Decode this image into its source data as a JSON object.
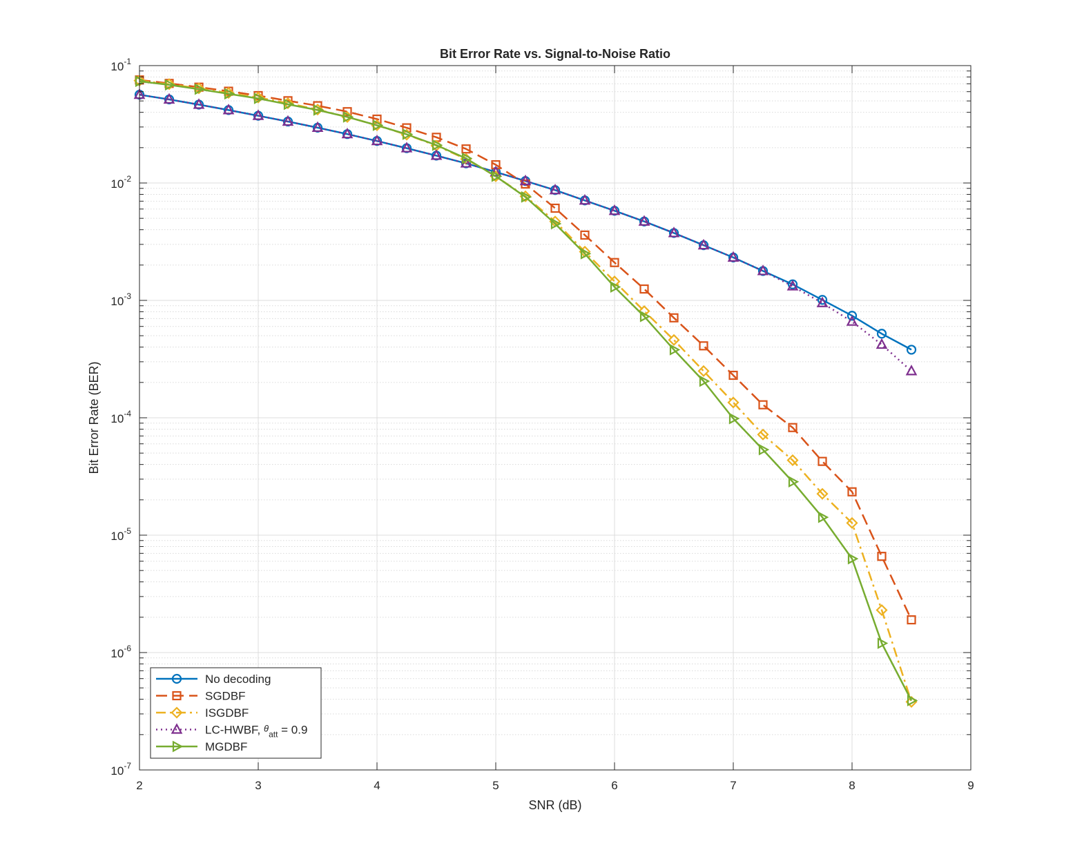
{
  "chart_data": {
    "type": "line",
    "title": "Bit Error Rate vs. Signal-to-Noise Ratio",
    "xlabel": "SNR (dB)",
    "ylabel": "Bit Error Rate (BER)",
    "xlim": [
      2,
      9
    ],
    "ylim": [
      1e-07,
      0.1
    ],
    "yscale": "log",
    "grid": true,
    "minor_grid": true,
    "legend_position": "bottom-left",
    "x_ticks": [
      "2",
      "3",
      "4",
      "5",
      "6",
      "7",
      "8",
      "9"
    ],
    "y_ticks": [
      {
        "base": "10",
        "exp": "-7"
      },
      {
        "base": "10",
        "exp": "-6"
      },
      {
        "base": "10",
        "exp": "-5"
      },
      {
        "base": "10",
        "exp": "-4"
      },
      {
        "base": "10",
        "exp": "-3"
      },
      {
        "base": "10",
        "exp": "-2"
      },
      {
        "base": "10",
        "exp": "-1"
      }
    ],
    "x": [
      2,
      2.25,
      2.5,
      2.75,
      3,
      3.25,
      3.5,
      3.75,
      4,
      4.25,
      4.5,
      4.75,
      5,
      5.25,
      5.5,
      5.75,
      6,
      6.25,
      6.5,
      6.75,
      7,
      7.25,
      7.5,
      7.75,
      8,
      8.25,
      8.5
    ],
    "series": [
      {
        "name": "No decoding",
        "color": "#0072BD",
        "dash": "solid",
        "marker": "circle",
        "values": [
          0.0565,
          0.0515,
          0.0465,
          0.0418,
          0.0374,
          0.0334,
          0.0296,
          0.0261,
          0.0228,
          0.0198,
          0.0171,
          0.0147,
          0.0124,
          0.0104,
          0.0087,
          0.0071,
          0.0058,
          0.0047,
          0.00375,
          0.00295,
          0.00232,
          0.00178,
          0.00137,
          0.00101,
          0.00074,
          0.00052,
          0.00038
        ]
      },
      {
        "name": "SGDBF",
        "color": "#D95319",
        "dash": "dashed",
        "marker": "square",
        "values": [
          0.0755,
          0.0705,
          0.0655,
          0.0605,
          0.0555,
          0.0502,
          0.0455,
          0.0405,
          0.035,
          0.0295,
          0.0245,
          0.0195,
          0.0143,
          0.0098,
          0.0061,
          0.0036,
          0.0021,
          0.00125,
          0.00071,
          0.00041,
          0.00023,
          0.000129,
          8.25e-05,
          4.25e-05,
          2.34e-05,
          6.6e-06,
          1.9e-06
        ]
      },
      {
        "name": "ISGDBF",
        "color": "#EDB120",
        "dash": "dashdot",
        "marker": "diamond",
        "values": [
          0.0745,
          0.0695,
          0.064,
          0.0585,
          0.0535,
          0.0478,
          0.0422,
          0.0365,
          0.031,
          0.0258,
          0.0208,
          0.016,
          0.0114,
          0.0077,
          0.0047,
          0.0026,
          0.00145,
          0.00081,
          0.00046,
          0.00025,
          0.000135,
          7.2e-05,
          4.35e-05,
          2.25e-05,
          1.27e-05,
          2.3e-06,
          3.8e-07
        ]
      },
      {
        "name": "LC-HWBF, θatt = 0.9",
        "name_main": "LC-HWBF, ",
        "name_theta": "θ",
        "name_sub": "att",
        "name_tail": " = 0.9",
        "color": "#7E2F8E",
        "dash": "dotted",
        "marker": "triangle-up",
        "values": [
          0.0565,
          0.0515,
          0.0465,
          0.0418,
          0.0374,
          0.0334,
          0.0296,
          0.0261,
          0.0228,
          0.0198,
          0.0171,
          0.0147,
          0.0124,
          0.0104,
          0.0087,
          0.0071,
          0.0058,
          0.0047,
          0.00375,
          0.00295,
          0.00232,
          0.00178,
          0.00132,
          0.00095,
          0.00066,
          0.00042,
          0.00025
        ]
      },
      {
        "name": "MGDBF",
        "color": "#77AC30",
        "dash": "solid",
        "marker": "triangle-right",
        "values": [
          0.0735,
          0.0685,
          0.063,
          0.0575,
          0.0525,
          0.0468,
          0.0418,
          0.0365,
          0.031,
          0.026,
          0.021,
          0.0162,
          0.0114,
          0.0076,
          0.0045,
          0.0025,
          0.0013,
          0.00073,
          0.00038,
          0.000205,
          9.85e-05,
          5.35e-05,
          2.85e-05,
          1.42e-05,
          6.3e-06,
          1.2e-06,
          3.9e-07
        ]
      }
    ]
  }
}
